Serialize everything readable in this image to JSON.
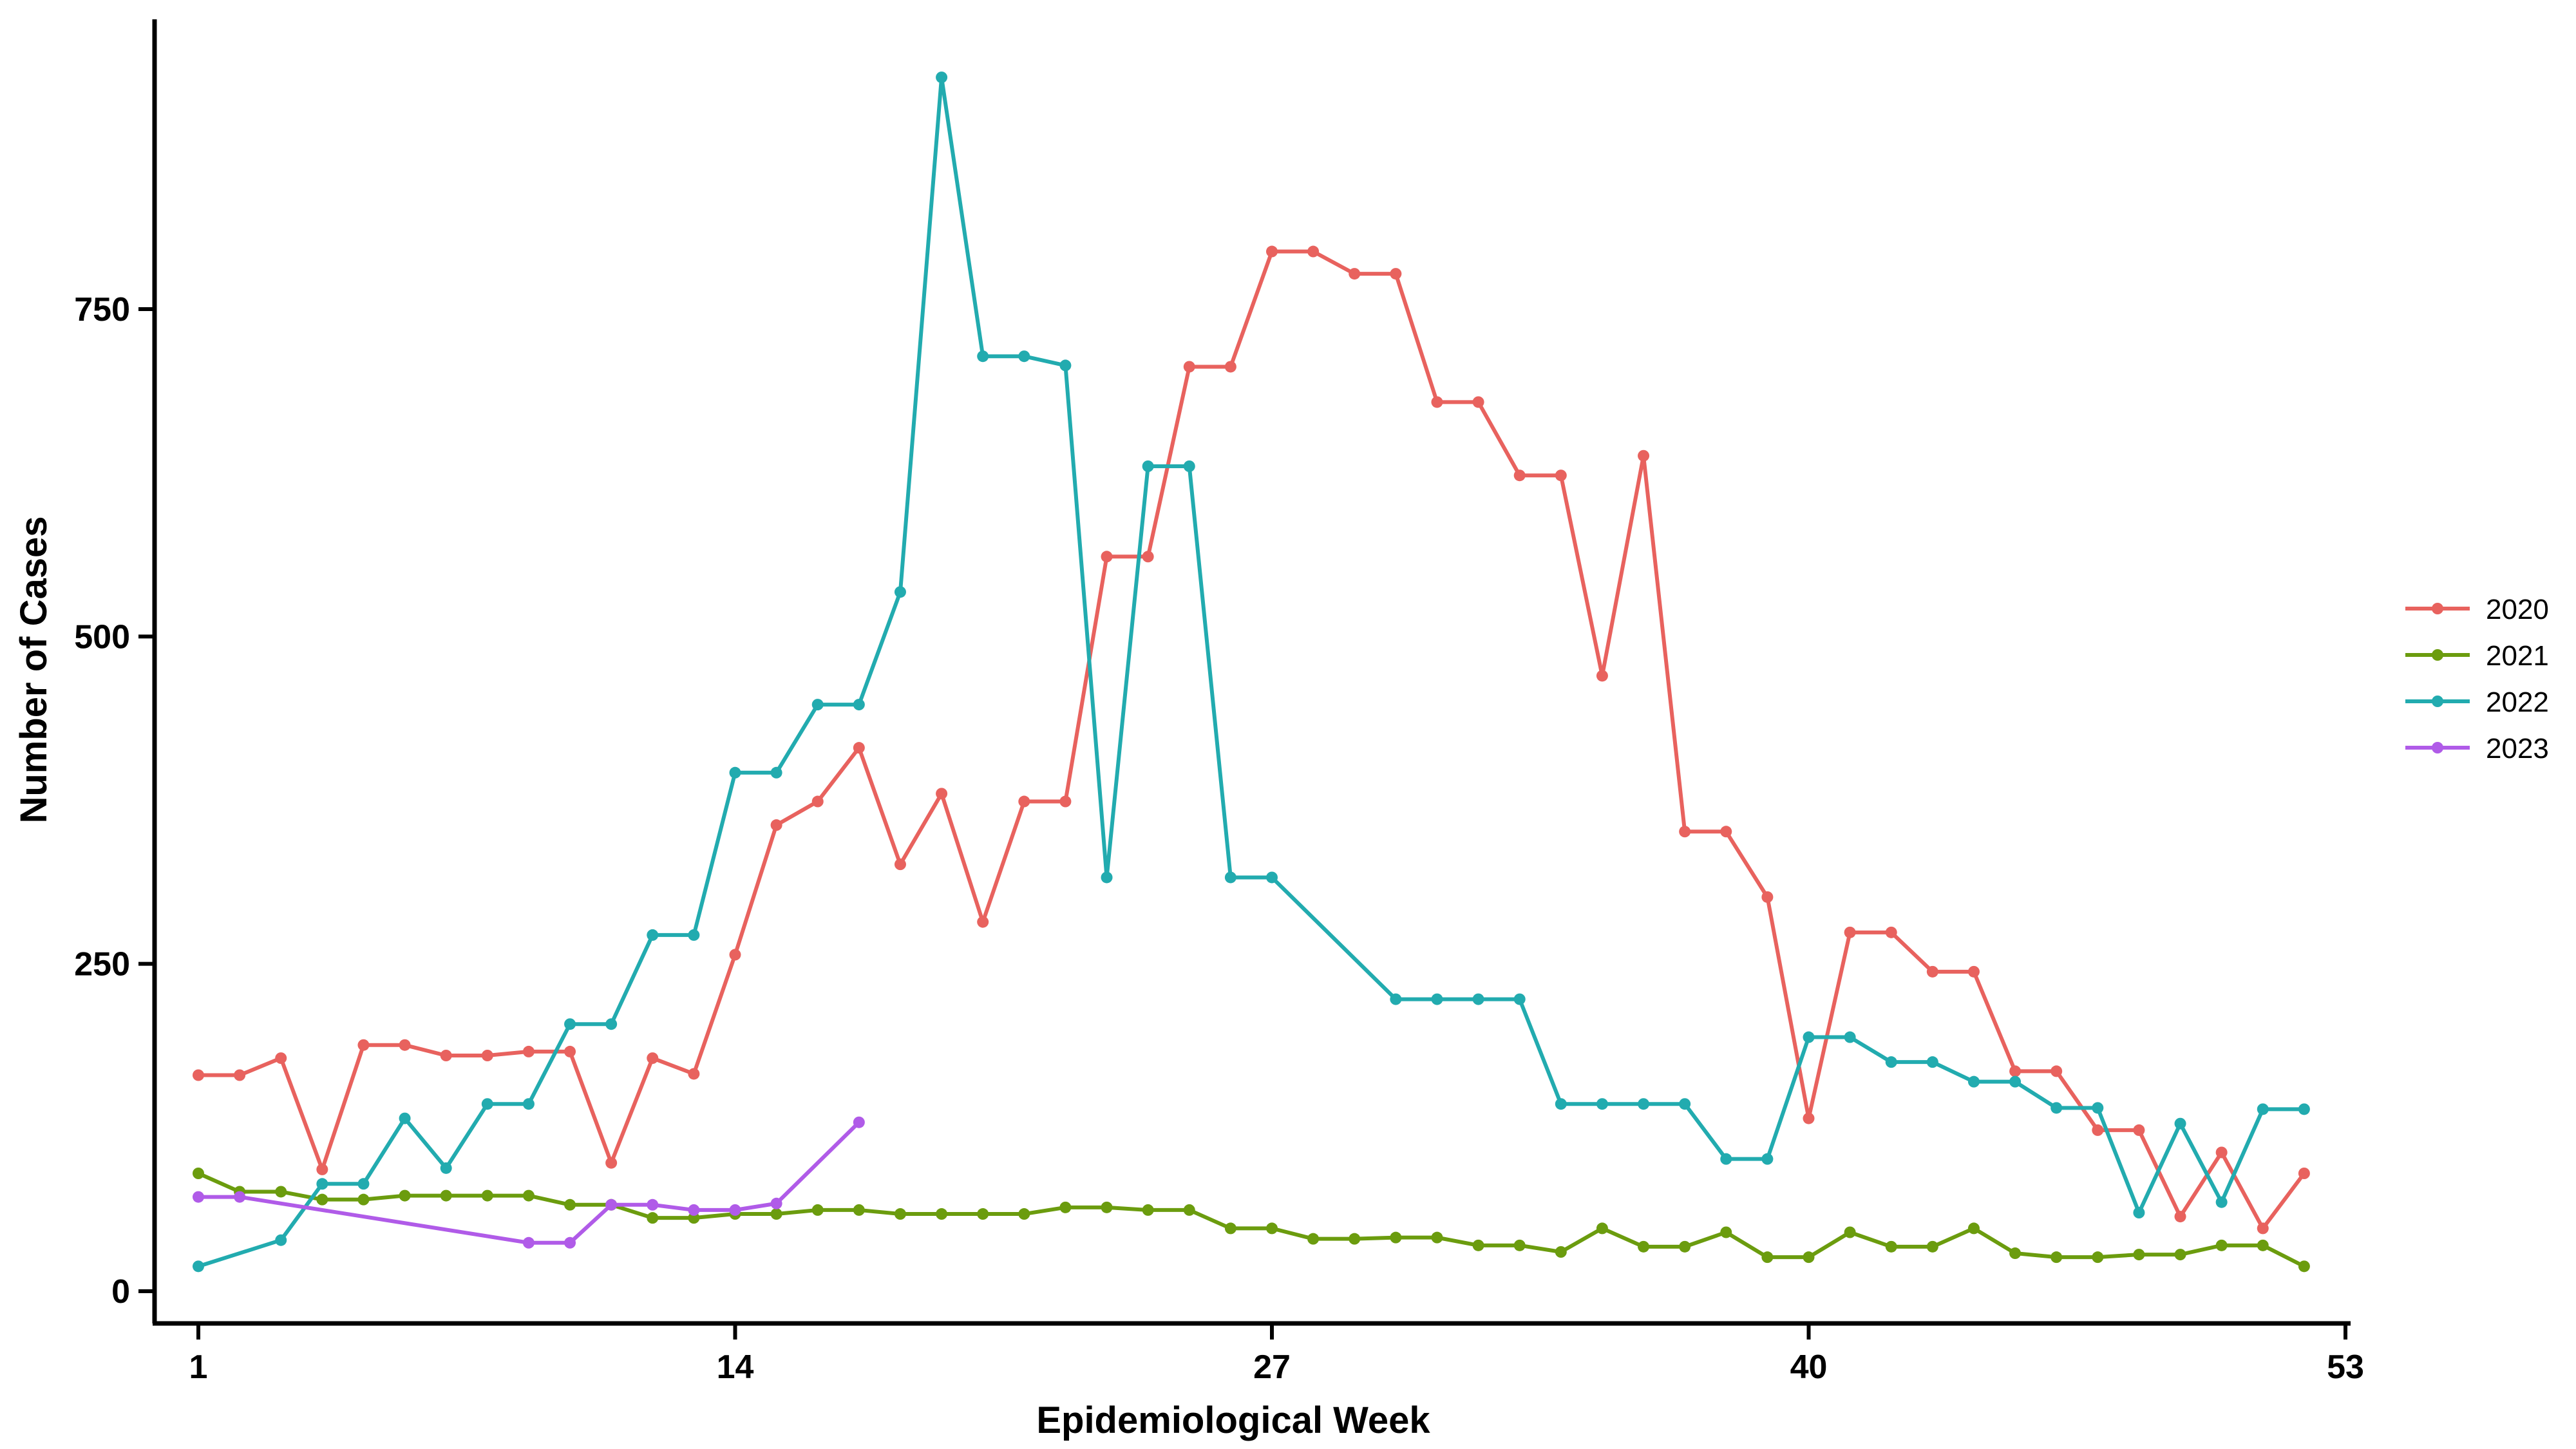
{
  "chart_data": {
    "type": "line",
    "title": "",
    "xlabel": "Epidemiological Week",
    "ylabel": "Number of Cases",
    "xlim": [
      0,
      53
    ],
    "ylim": [
      -25,
      970
    ],
    "x_ticks": [
      1,
      14,
      27,
      40,
      53
    ],
    "y_ticks": [
      0,
      250,
      500,
      750
    ],
    "grid": false,
    "legend_position": "right",
    "series": [
      {
        "name": "2020",
        "color": "#E8625E",
        "points": [
          [
            1,
            165
          ],
          [
            2,
            165
          ],
          [
            3,
            178
          ],
          [
            4,
            93
          ],
          [
            5,
            188
          ],
          [
            6,
            188
          ],
          [
            7,
            180
          ],
          [
            8,
            180
          ],
          [
            9,
            183
          ],
          [
            10,
            183
          ],
          [
            11,
            98
          ],
          [
            12,
            178
          ],
          [
            13,
            166
          ],
          [
            14,
            257
          ],
          [
            15,
            356
          ],
          [
            16,
            374
          ],
          [
            17,
            415
          ],
          [
            18,
            326
          ],
          [
            19,
            380
          ],
          [
            20,
            282
          ],
          [
            21,
            374
          ],
          [
            22,
            374
          ],
          [
            23,
            561
          ],
          [
            24,
            561
          ],
          [
            25,
            706
          ],
          [
            26,
            706
          ],
          [
            27,
            794
          ],
          [
            28,
            794
          ],
          [
            29,
            777
          ],
          [
            30,
            777
          ],
          [
            31,
            679
          ],
          [
            32,
            679
          ],
          [
            33,
            623
          ],
          [
            34,
            623
          ],
          [
            35,
            470
          ],
          [
            36,
            638
          ],
          [
            37,
            351
          ],
          [
            38,
            351
          ],
          [
            39,
            301
          ],
          [
            40,
            132
          ],
          [
            41,
            274
          ],
          [
            42,
            274
          ],
          [
            43,
            244
          ],
          [
            44,
            244
          ],
          [
            45,
            168
          ],
          [
            46,
            168
          ],
          [
            47,
            123
          ],
          [
            48,
            123
          ],
          [
            49,
            57
          ],
          [
            50,
            106
          ],
          [
            51,
            48
          ],
          [
            52,
            90
          ]
        ]
      },
      {
        "name": "2021",
        "color": "#6B9C0E",
        "points": [
          [
            1,
            90
          ],
          [
            2,
            76
          ],
          [
            3,
            76
          ],
          [
            4,
            70
          ],
          [
            5,
            70
          ],
          [
            6,
            73
          ],
          [
            7,
            73
          ],
          [
            8,
            73
          ],
          [
            9,
            73
          ],
          [
            10,
            66
          ],
          [
            11,
            66
          ],
          [
            12,
            56
          ],
          [
            13,
            56
          ],
          [
            14,
            59
          ],
          [
            15,
            59
          ],
          [
            16,
            62
          ],
          [
            17,
            62
          ],
          [
            18,
            59
          ],
          [
            19,
            59
          ],
          [
            20,
            59
          ],
          [
            21,
            59
          ],
          [
            22,
            64
          ],
          [
            23,
            64
          ],
          [
            24,
            62
          ],
          [
            25,
            62
          ],
          [
            26,
            48
          ],
          [
            27,
            48
          ],
          [
            28,
            40
          ],
          [
            29,
            40
          ],
          [
            30,
            41
          ],
          [
            31,
            41
          ],
          [
            32,
            35
          ],
          [
            33,
            35
          ],
          [
            34,
            30
          ],
          [
            35,
            48
          ],
          [
            36,
            34
          ],
          [
            37,
            34
          ],
          [
            38,
            45
          ],
          [
            39,
            26
          ],
          [
            40,
            26
          ],
          [
            41,
            45
          ],
          [
            42,
            34
          ],
          [
            43,
            34
          ],
          [
            44,
            48
          ],
          [
            45,
            29
          ],
          [
            46,
            26
          ],
          [
            47,
            26
          ],
          [
            48,
            28
          ],
          [
            49,
            28
          ],
          [
            50,
            35
          ],
          [
            51,
            35
          ],
          [
            52,
            19
          ]
        ]
      },
      {
        "name": "2022",
        "color": "#22ABAF",
        "points": [
          [
            1,
            19
          ],
          [
            3,
            39
          ],
          [
            4,
            82
          ],
          [
            5,
            82
          ],
          [
            6,
            132
          ],
          [
            7,
            94
          ],
          [
            8,
            143
          ],
          [
            9,
            143
          ],
          [
            10,
            204
          ],
          [
            11,
            204
          ],
          [
            12,
            272
          ],
          [
            13,
            272
          ],
          [
            14,
            396
          ],
          [
            15,
            396
          ],
          [
            16,
            448
          ],
          [
            17,
            448
          ],
          [
            18,
            534
          ],
          [
            19,
            927
          ],
          [
            20,
            714
          ],
          [
            21,
            714
          ],
          [
            22,
            707
          ],
          [
            23,
            316
          ],
          [
            24,
            630
          ],
          [
            25,
            630
          ],
          [
            26,
            316
          ],
          [
            27,
            316
          ],
          [
            30,
            223
          ],
          [
            31,
            223
          ],
          [
            32,
            223
          ],
          [
            33,
            223
          ],
          [
            34,
            143
          ],
          [
            35,
            143
          ],
          [
            36,
            143
          ],
          [
            37,
            143
          ],
          [
            38,
            101
          ],
          [
            39,
            101
          ],
          [
            40,
            194
          ],
          [
            41,
            194
          ],
          [
            42,
            175
          ],
          [
            43,
            175
          ],
          [
            44,
            160
          ],
          [
            45,
            160
          ],
          [
            46,
            140
          ],
          [
            47,
            140
          ],
          [
            48,
            60
          ],
          [
            49,
            128
          ],
          [
            50,
            68
          ],
          [
            51,
            139
          ],
          [
            52,
            139
          ]
        ]
      },
      {
        "name": "2023",
        "color": "#B05BE8",
        "points": [
          [
            1,
            72
          ],
          [
            2,
            72
          ],
          [
            9,
            37
          ],
          [
            10,
            37
          ],
          [
            11,
            66
          ],
          [
            12,
            66
          ],
          [
            13,
            62
          ],
          [
            14,
            62
          ],
          [
            15,
            67
          ],
          [
            17,
            129
          ]
        ]
      }
    ]
  }
}
